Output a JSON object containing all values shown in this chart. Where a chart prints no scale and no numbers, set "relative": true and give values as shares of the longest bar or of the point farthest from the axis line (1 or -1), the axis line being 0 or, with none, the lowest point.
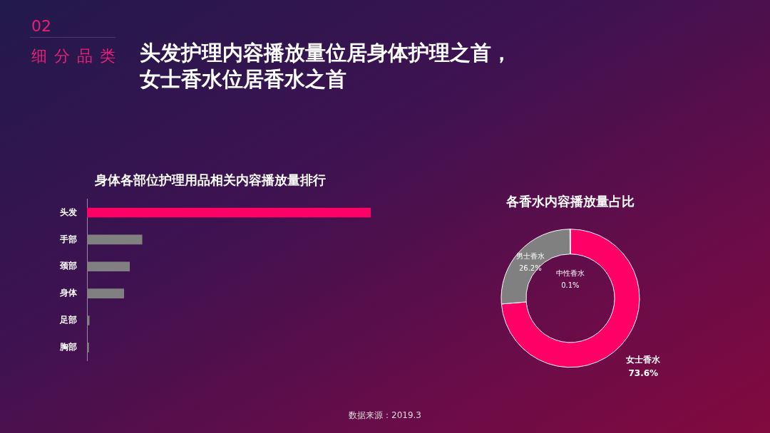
{
  "chart_data": [
    {
      "type": "other",
      "title": "头发护理内容播放量位居身体护理之首，女士香水位居香水之首",
      "annotations": [
        "02",
        "细分品类",
        "数据来源：2019.3"
      ]
    },
    {
      "type": "bar",
      "orientation": "horizontal",
      "relative": true,
      "title": "身体各部位护理用品相关内容播放量排行",
      "categories": [
        "头发",
        "手部",
        "颈部",
        "身体",
        "足部",
        "胸部"
      ],
      "values": [
        1,
        0.194,
        0.15,
        0.13,
        0.008,
        0.006
      ],
      "colors": [
        "#ff0066",
        "#808080",
        "#808080",
        "#808080",
        "#808080",
        "#808080"
      ],
      "legend": false
    },
    {
      "type": "donut",
      "title": "各香水内容播放量占比",
      "categories": [
        "女士香水",
        "男士香水",
        "中性香水"
      ],
      "values": [
        73.6,
        26.2,
        0.1
      ],
      "colors": [
        "#ff0066",
        "#808080",
        "#ffffff"
      ],
      "value_labels": [
        "73.6%",
        "26.2%",
        "0.1%"
      ],
      "legend": false
    }
  ]
}
